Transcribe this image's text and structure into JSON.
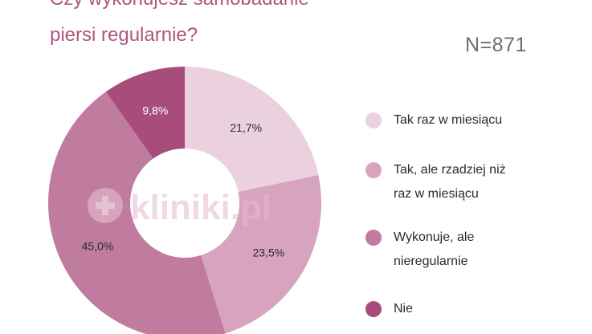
{
  "title": {
    "line1": "Czy wykonujesz samobadanie",
    "line2": "piersi regularnie?"
  },
  "n_label": "N=871",
  "watermark": "kliniki.pl",
  "colors": {
    "title": "#b0557f",
    "slices": [
      "#ebd0de",
      "#d6a4bf",
      "#c07c9f",
      "#a84d7b"
    ]
  },
  "chart_data": {
    "type": "pie",
    "donut": true,
    "title": "Czy wykonujesz samobadanie piersi regularnie?",
    "categories": [
      "Tak raz w miesiącu",
      "Tak, ale rzadziej niż raz w miesiącu",
      "Wykonuje, ale nieregularnie",
      "Nie"
    ],
    "values": [
      21.7,
      23.5,
      45.0,
      9.8
    ],
    "labels": [
      "21,7%",
      "23,5%",
      "45,0%",
      "9,8%"
    ],
    "legend_position": "right"
  },
  "legend": [
    {
      "line1": "Tak raz w miesiącu",
      "line2": ""
    },
    {
      "line1": "Tak, ale rzadziej niż",
      "line2": "raz w miesiącu"
    },
    {
      "line1": "Wykonuje, ale",
      "line2": "nieregularnie"
    },
    {
      "line1": "Nie",
      "line2": ""
    }
  ]
}
